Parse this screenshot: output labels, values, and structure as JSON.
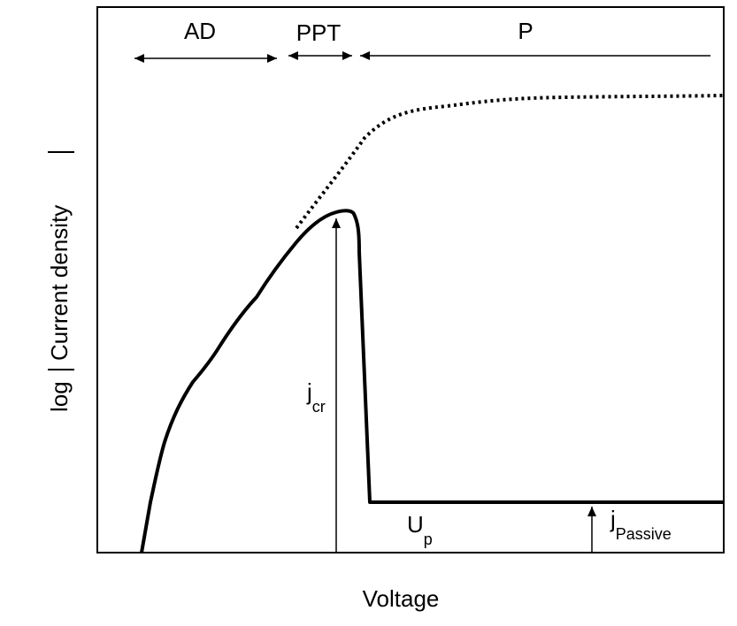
{
  "diagram": {
    "xlabel": "Voltage",
    "ylabel_prefix": "log",
    "ylabel_main": "Current density",
    "regions": [
      {
        "id": "ad",
        "label": "AD"
      },
      {
        "id": "ppt",
        "label": "PPT"
      },
      {
        "id": "p",
        "label": "P"
      }
    ],
    "annotations": {
      "j_cr": {
        "main": "j",
        "sub": "cr"
      },
      "u_p": {
        "main": "U",
        "sub": "p"
      },
      "j_passive": {
        "main": "j",
        "sub": "Passive"
      }
    },
    "curves": {
      "measured": {
        "style": "solid",
        "color": "#000000"
      },
      "active_extrapolation": {
        "style": "dotted",
        "color": "#000000"
      }
    }
  }
}
